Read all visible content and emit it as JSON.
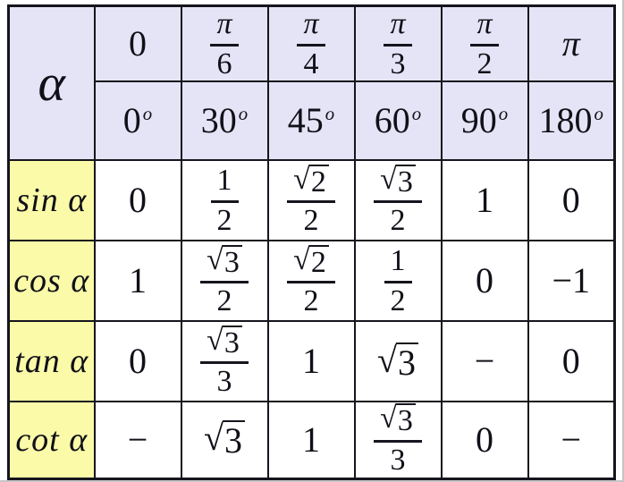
{
  "table": {
    "corner_label": "α",
    "radians": [
      "0",
      "π/6",
      "π/4",
      "π/3",
      "π/2",
      "π"
    ],
    "degrees": [
      "0",
      "30",
      "45",
      "60",
      "90",
      "180"
    ],
    "degree_sup": "o",
    "rows": [
      {
        "label": "sin α",
        "values": [
          "0",
          "1/2",
          "√2/2",
          "√3/2",
          "1",
          "0"
        ]
      },
      {
        "label": "cos α",
        "values": [
          "1",
          "√3/2",
          "√2/2",
          "1/2",
          "0",
          "−1"
        ]
      },
      {
        "label": "tan α",
        "values": [
          "0",
          "√3/3",
          "1",
          "√3",
          "−",
          "0"
        ]
      },
      {
        "label": "cot α",
        "values": [
          "−",
          "√3",
          "1",
          "√3/3",
          "0",
          "−"
        ]
      }
    ],
    "colors": {
      "header_bg": "#e4e4f6",
      "label_bg": "#fafaa8",
      "cell_bg": "#ffffff",
      "border": "#15151d"
    }
  }
}
